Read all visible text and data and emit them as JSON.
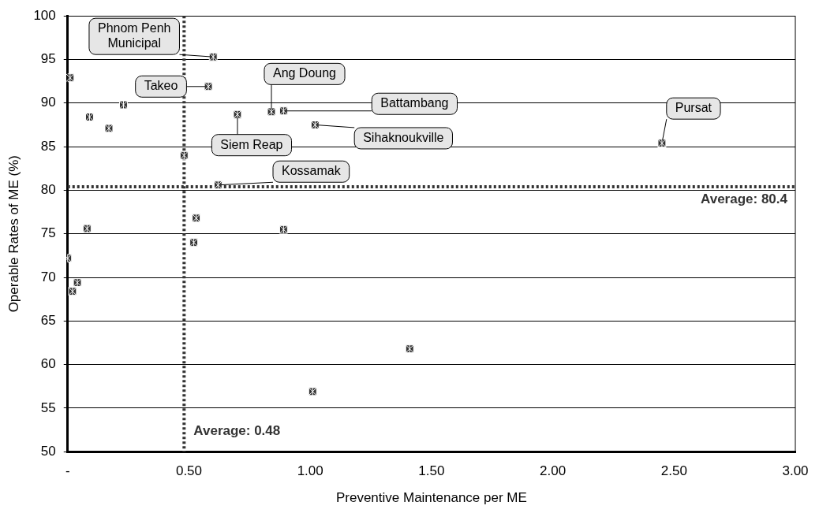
{
  "chart_data": {
    "type": "scatter",
    "xlabel": "Preventive Maintenance per ME",
    "ylabel": "Operable Rates of ME (%)",
    "x": [
      0.01,
      0.6,
      0.58,
      0.23,
      0.09,
      0.17,
      0.7,
      0.84,
      0.89,
      1.02,
      2.45,
      0.48,
      0.62,
      0.53,
      0.08,
      0.89,
      0.52,
      0.0,
      0.04,
      0.02,
      1.01,
      1.41
    ],
    "series": [
      {
        "color": "#333333",
        "values": [
          92.9,
          95.3,
          91.9,
          89.8,
          88.4,
          87.1,
          88.7,
          89.0,
          89.1,
          87.5,
          85.4,
          84.0,
          80.6,
          76.8,
          75.6,
          75.5,
          74.0,
          72.2,
          69.4,
          68.4,
          56.9,
          61.8
        ]
      }
    ],
    "xlim": [
      0,
      3
    ],
    "xticks": [
      {
        "value": 0,
        "label": "-"
      },
      {
        "value": 0.5,
        "label": "0.50"
      },
      {
        "value": 1,
        "label": "1.00"
      },
      {
        "value": 1.5,
        "label": "1.50"
      },
      {
        "value": 2,
        "label": "2.00"
      },
      {
        "value": 2.5,
        "label": "2.50"
      },
      {
        "value": 3,
        "label": "3.00"
      }
    ],
    "ylim": [
      50,
      100
    ],
    "yticks": [
      50,
      55,
      60,
      65,
      70,
      75,
      80,
      85,
      90,
      95,
      100
    ],
    "grid": "y",
    "legend": false,
    "marker": "square",
    "ref_lines": [
      {
        "axis": "x",
        "value": 0.48,
        "label": "Average: 0.48",
        "line_style": "dotted",
        "color": "#333333"
      },
      {
        "axis": "y",
        "value": 80.4,
        "label": "Average: 80.4",
        "line_style": "dotted",
        "color": "#333333"
      }
    ],
    "annotations": [
      {
        "text": "Phnom Penh Municipal",
        "x": 0.6,
        "y": 95.3
      },
      {
        "text": "Takeo",
        "x": 0.58,
        "y": 91.9
      },
      {
        "text": "Ang Doung",
        "x": 0.84,
        "y": 89.0
      },
      {
        "text": "Battambang",
        "x": 0.89,
        "y": 89.1
      },
      {
        "text": "Sihaknoukville",
        "x": 1.02,
        "y": 87.5
      },
      {
        "text": "Pursat",
        "x": 2.45,
        "y": 85.4
      },
      {
        "text": "Siem Reap",
        "x": 0.7,
        "y": 88.7
      },
      {
        "text": "Kossamak",
        "x": 0.62,
        "y": 80.6
      }
    ]
  }
}
